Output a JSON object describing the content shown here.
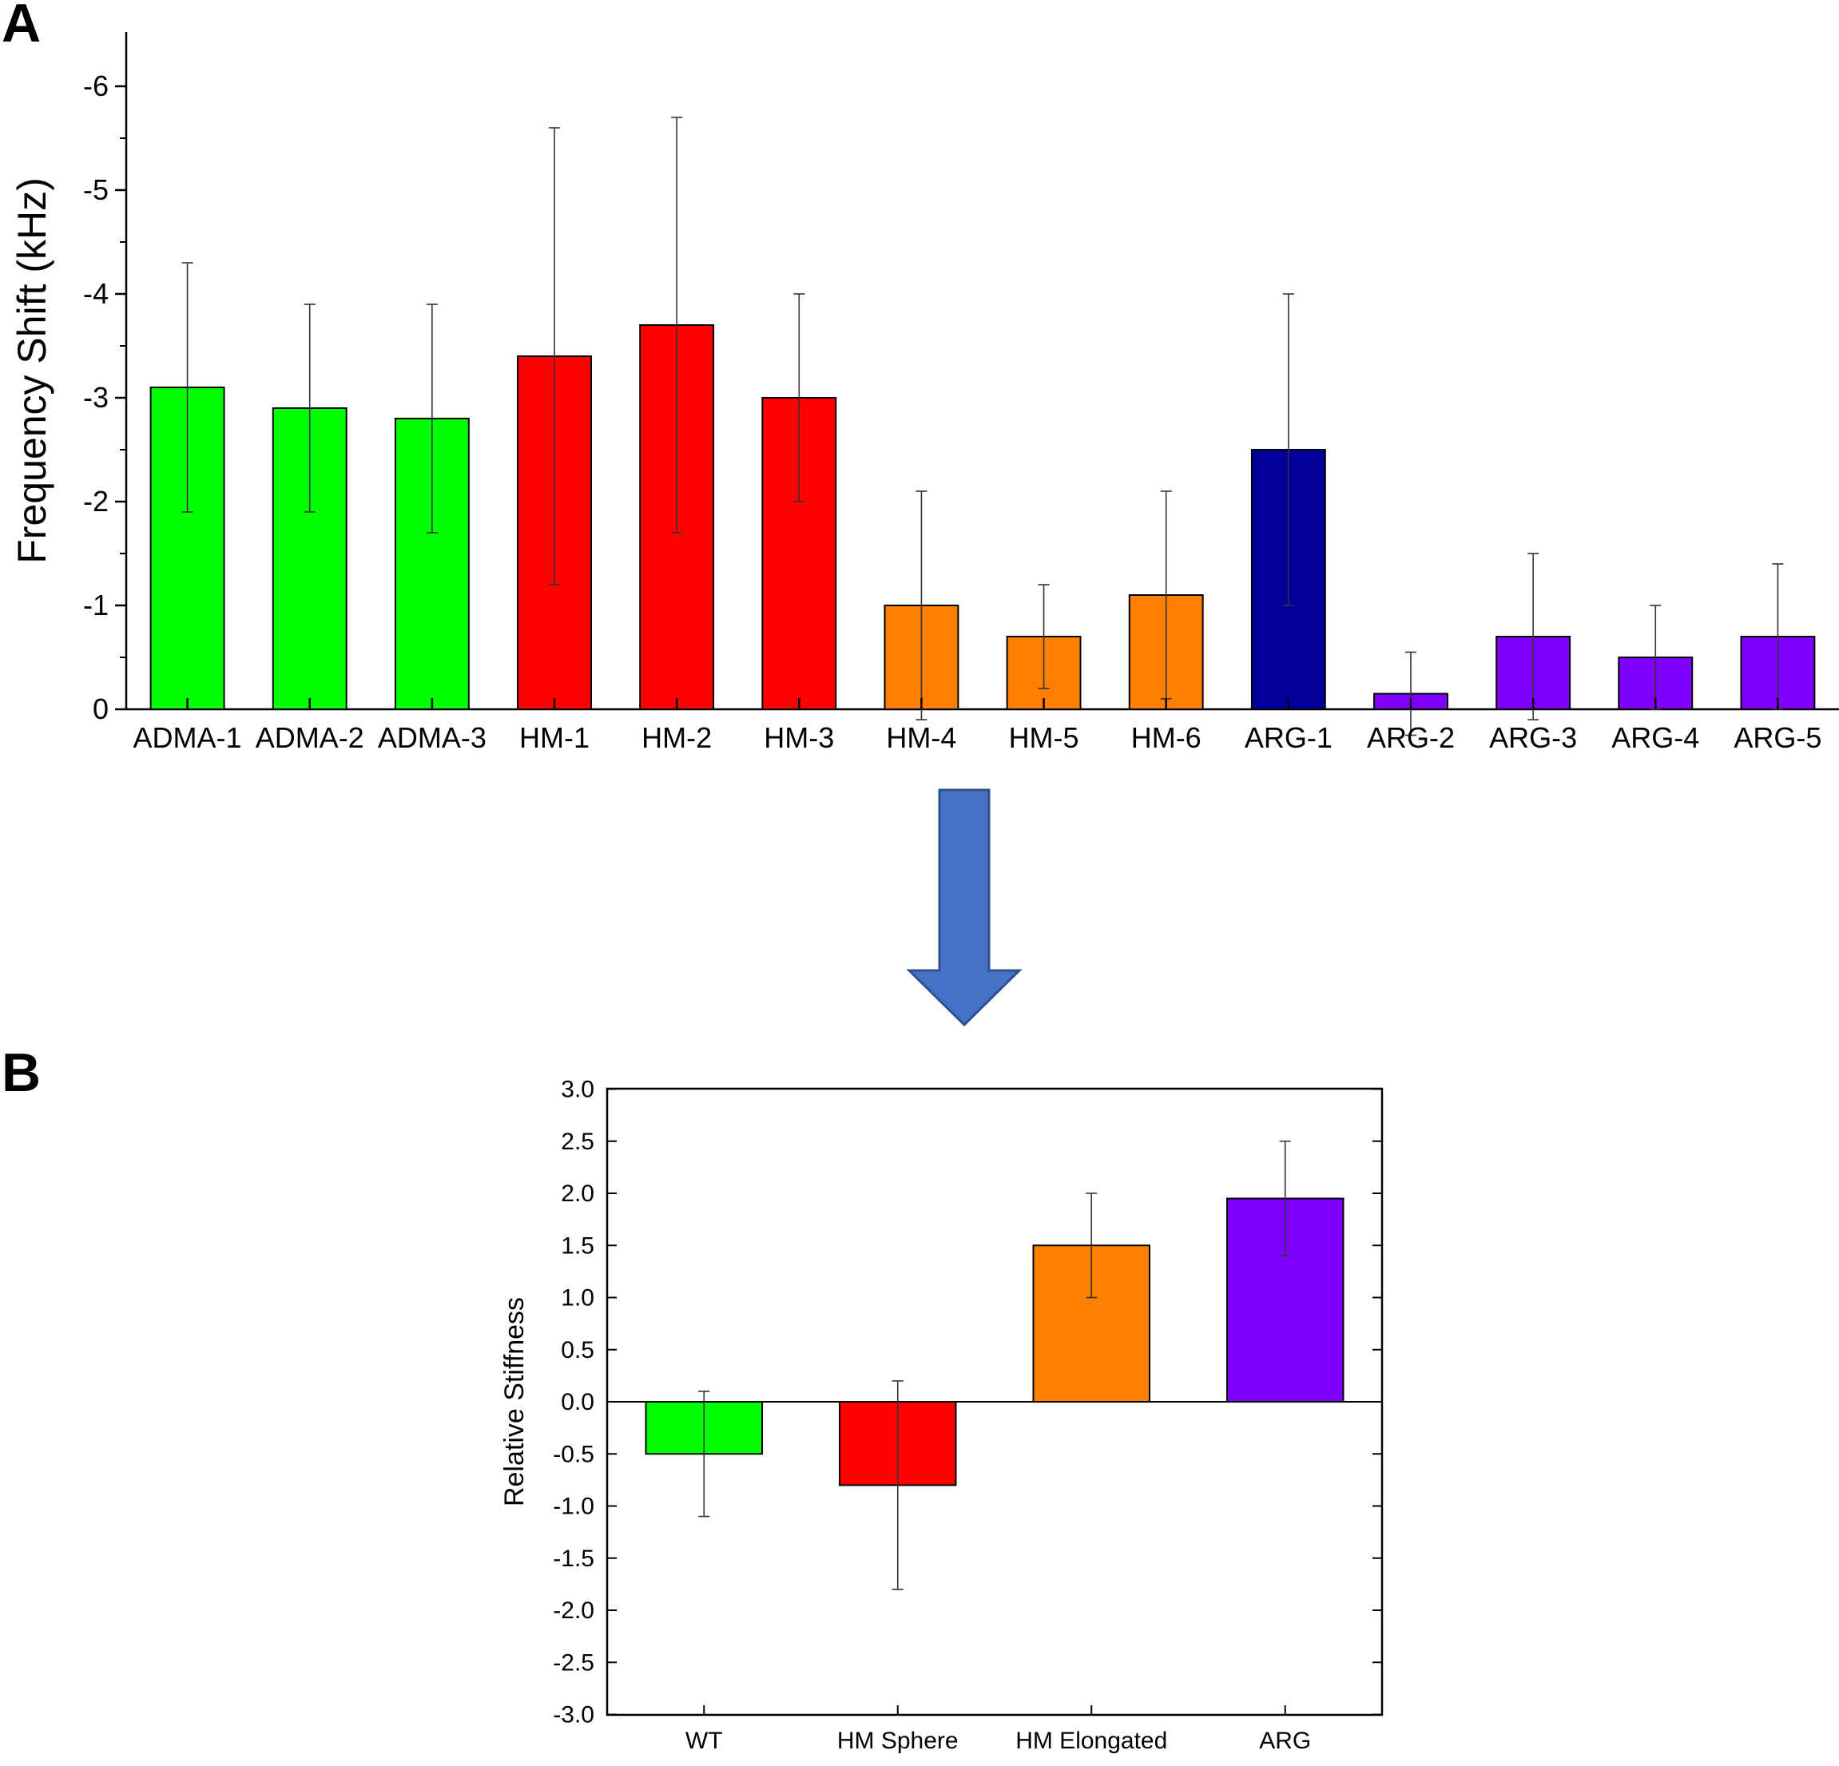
{
  "panels": {
    "a_letter": "A",
    "b_letter": "B"
  },
  "arrow": {
    "icon": "down-arrow-icon",
    "color": "#4472C4"
  },
  "chart_data": [
    {
      "panel": "A",
      "type": "bar",
      "ylabel": "Frequency Shift (kHz)",
      "xlabel": "",
      "ylim": [
        0,
        -6.5
      ],
      "y_axis_inverted": true,
      "yticks": [
        0,
        -1,
        -2,
        -3,
        -4,
        -5,
        -6
      ],
      "ytick_labels": [
        "0",
        "-1",
        "-2",
        "-3",
        "-4",
        "-5",
        "-6"
      ],
      "grid": false,
      "legend": "none",
      "categories": [
        "ADMA-1",
        "ADMA-2",
        "ADMA-3",
        "HM-1",
        "HM-2",
        "HM-3",
        "HM-4",
        "HM-5",
        "HM-6",
        "ARG-1",
        "ARG-2",
        "ARG-3",
        "ARG-4",
        "ARG-5"
      ],
      "values": [
        -3.1,
        -2.9,
        -2.8,
        -3.4,
        -3.7,
        -3.0,
        -1.0,
        -0.7,
        -1.1,
        -2.5,
        -0.15,
        -0.7,
        -0.5,
        -0.7
      ],
      "error": [
        1.2,
        1.0,
        1.1,
        2.2,
        2.0,
        1.0,
        1.1,
        0.5,
        1.0,
        1.5,
        0.4,
        0.8,
        0.5,
        0.7
      ],
      "colors": [
        "#00FF00",
        "#00FF00",
        "#00FF00",
        "#FF0000",
        "#FF0000",
        "#FF0000",
        "#FF8000",
        "#FF8000",
        "#FF8000",
        "#000099",
        "#8000FF",
        "#8000FF",
        "#8000FF",
        "#8000FF"
      ]
    },
    {
      "panel": "B",
      "type": "bar",
      "ylabel": "Relative Stiffness",
      "xlabel": "",
      "ylim": [
        -3.0,
        3.0
      ],
      "yticks": [
        3.0,
        2.5,
        2.0,
        1.5,
        1.0,
        0.5,
        0.0,
        -0.5,
        -1.0,
        -1.5,
        -2.0,
        -2.5,
        -3.0
      ],
      "ytick_labels": [
        "3.0",
        "2.5",
        "2.0",
        "1.5",
        "1.0",
        "0.5",
        "0.0",
        "-0.5",
        "-1.0",
        "-1.5",
        "-2.0",
        "-2.5",
        "-3.0"
      ],
      "grid": false,
      "legend": "none",
      "categories": [
        "WT",
        "HM Sphere",
        "HM Elongated",
        "ARG"
      ],
      "values": [
        -0.5,
        -0.8,
        1.5,
        1.95
      ],
      "error": [
        0.6,
        1.0,
        0.5,
        0.55
      ],
      "colors": [
        "#00FF00",
        "#FF0000",
        "#FF8000",
        "#8000FF"
      ]
    }
  ]
}
